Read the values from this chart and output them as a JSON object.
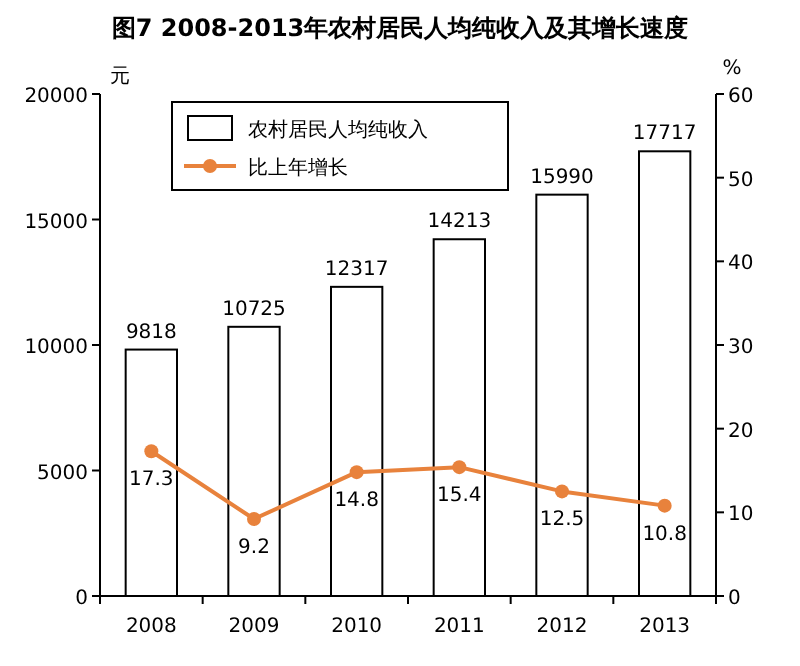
{
  "chart_data": {
    "type": "bar",
    "title": "图7 2008-2013年农村居民人均纯收入及其增长速度",
    "ylabel": "元",
    "y2label": "%",
    "categories": [
      "2008",
      "2009",
      "2010",
      "2011",
      "2012",
      "2013"
    ],
    "series": [
      {
        "name": "农村居民人均纯收入",
        "color": "#ffffff",
        "values": [
          9818,
          10725,
          12317,
          14213,
          15990,
          17717
        ]
      },
      {
        "name": "比上年增长",
        "type": "line",
        "axis": "y2",
        "color": "#e8823c",
        "marker": "circle",
        "values": [
          17.3,
          9.2,
          14.8,
          15.4,
          12.5,
          10.8
        ]
      }
    ],
    "ylim": [
      0,
      20000
    ],
    "yticks": [
      0,
      5000,
      10000,
      15000,
      20000
    ],
    "y2lim": [
      0,
      60
    ],
    "y2ticks": [
      0,
      10,
      20,
      30,
      40,
      50,
      60
    ],
    "data_labels": true,
    "legend": "top left",
    "grid": false
  }
}
